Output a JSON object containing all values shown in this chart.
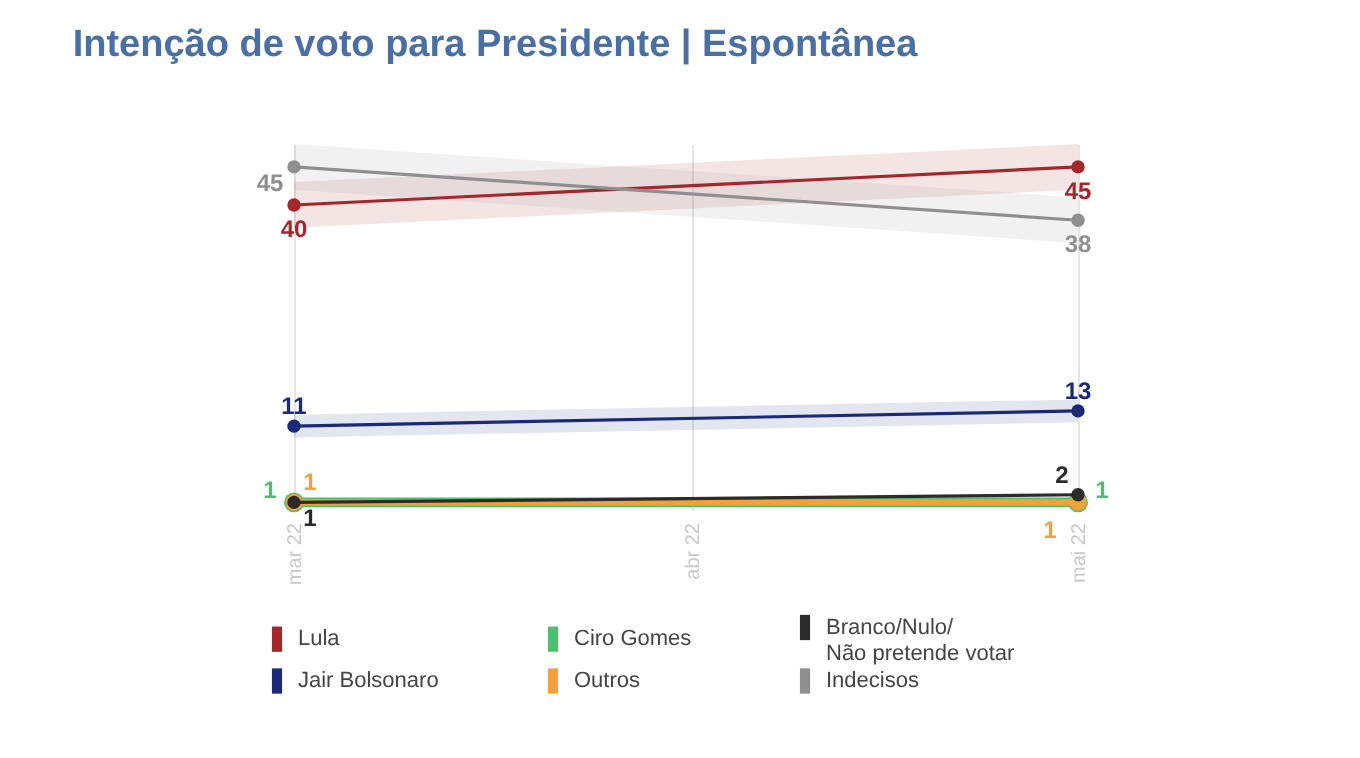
{
  "chart_data": {
    "type": "line",
    "title": "Intenção de voto para Presidente | Espontânea",
    "x": [
      "2022-03",
      "2022-05"
    ],
    "xlim": [
      "2022-03",
      "2022-05"
    ],
    "xticks": [
      {
        "value": "2022-03",
        "label": "mar 22"
      },
      {
        "value": "2022-04",
        "label": "abr 22"
      },
      {
        "value": "2022-05",
        "label": "mai 22"
      }
    ],
    "series": [
      {
        "name": "Lula",
        "color": "#a3272d",
        "values": [
          40,
          45
        ],
        "lower": [
          37,
          42
        ],
        "upper": [
          43,
          48
        ]
      },
      {
        "name": "Jair Bolsonaro",
        "color": "#1b2a78",
        "values": [
          11,
          13
        ],
        "lower": [
          9.5,
          11.5
        ],
        "upper": [
          12.5,
          14.5
        ]
      },
      {
        "name": "Ciro Gomes",
        "color": "#4fbf6e",
        "values": [
          1,
          1
        ]
      },
      {
        "name": "Outros",
        "color": "#f2a23a",
        "values": [
          1,
          1
        ]
      },
      {
        "name": "Branco/Nulo/\nNão pretende votar",
        "color": "#2b2b2b",
        "values": [
          1,
          2
        ]
      },
      {
        "name": "Indecisos",
        "color": "#8f8f8f",
        "values": [
          45,
          38
        ],
        "lower": [
          42,
          35
        ],
        "upper": [
          48,
          41
        ]
      }
    ],
    "data_labels": true,
    "grid": "x",
    "legend": "bottom",
    "marker": "circle",
    "line_style": "solid"
  }
}
